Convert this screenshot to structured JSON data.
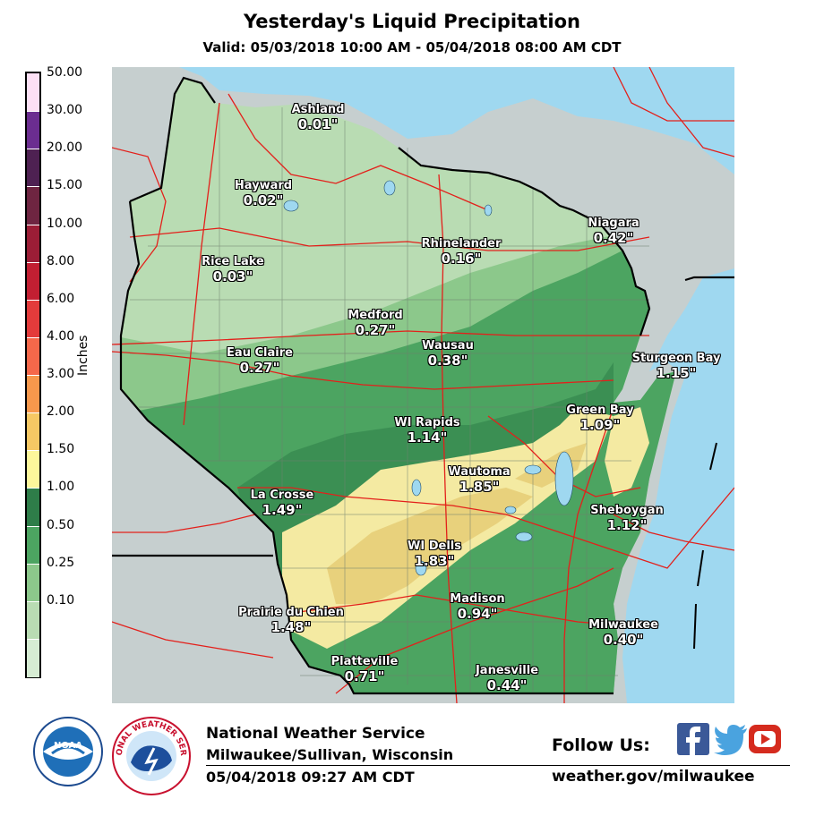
{
  "header": {
    "title": "Yesterday's Liquid Precipitation",
    "subtitle": "Valid: 05/03/2018 10:00 AM - 05/04/2018 08:00 AM CDT"
  },
  "legend": {
    "units": "Inches",
    "ticks": [
      "50.00",
      "30.00",
      "20.00",
      "15.00",
      "10.00",
      "8.00",
      "6.00",
      "4.00",
      "3.00",
      "2.00",
      "1.50",
      "1.00",
      "0.50",
      "0.25",
      "0.10"
    ],
    "colors": [
      "#fde0f5",
      "#6b2d90",
      "#4e2152",
      "#6e2541",
      "#9b1d36",
      "#c21f32",
      "#e33b3b",
      "#f5684a",
      "#f7984c",
      "#f6c864",
      "#fdf79b",
      "#2e7d49",
      "#4ca461",
      "#8cc88b",
      "#b9dcb3",
      "#d6ecd3"
    ]
  },
  "stations": [
    {
      "city": "Ashland",
      "amount": "0.01\""
    },
    {
      "city": "Hayward",
      "amount": "0.02\""
    },
    {
      "city": "Rice Lake",
      "amount": "0.03\""
    },
    {
      "city": "Rhinelander",
      "amount": "0.16\""
    },
    {
      "city": "Niagara",
      "amount": "0.42\""
    },
    {
      "city": "Medford",
      "amount": "0.27\""
    },
    {
      "city": "Eau Claire",
      "amount": "0.27\""
    },
    {
      "city": "Wausau",
      "amount": "0.38\""
    },
    {
      "city": "Sturgeon Bay",
      "amount": "1.15\""
    },
    {
      "city": "Green Bay",
      "amount": "1.09\""
    },
    {
      "city": "WI Rapids",
      "amount": "1.14\""
    },
    {
      "city": "Wautoma",
      "amount": "1.85\""
    },
    {
      "city": "La Crosse",
      "amount": "1.49\""
    },
    {
      "city": "Sheboygan",
      "amount": "1.12\""
    },
    {
      "city": "WI Dells",
      "amount": "1.83\""
    },
    {
      "city": "Madison",
      "amount": "0.94\""
    },
    {
      "city": "Prairie du Chien",
      "amount": "1.48\""
    },
    {
      "city": "Milwaukee",
      "amount": "0.40\""
    },
    {
      "city": "Platteville",
      "amount": "0.71\""
    },
    {
      "city": "Janesville",
      "amount": "0.44\""
    }
  ],
  "footer": {
    "office_name": "National Weather Service",
    "office_location": "Milwaukee/Sullivan, Wisconsin",
    "issued": "05/04/2018 09:27 AM CDT",
    "follow": "Follow Us:",
    "website": "weather.gov/milwaukee",
    "noaa_logo_text": "NOAA",
    "nws_logo_text": "NATIONAL WEATHER SERVICE"
  },
  "map_colors": {
    "water": "#9fd8f0",
    "outside": "#c6cfcf",
    "border": "#000000",
    "roads": "#e3201b",
    "counties": "#7a8a7a"
  },
  "icons": [
    "facebook-icon",
    "twitter-icon",
    "youtube-icon"
  ]
}
